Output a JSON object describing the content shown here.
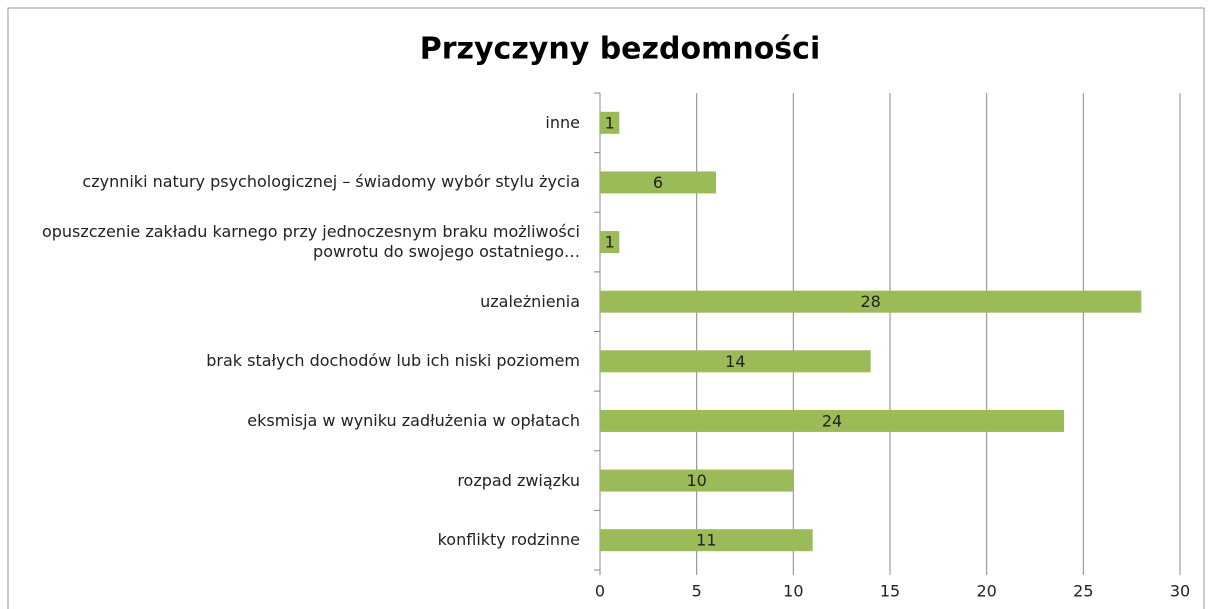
{
  "chart_data": {
    "type": "bar",
    "orientation": "horizontal",
    "title": "Przyczyny bezdomności",
    "categories": [
      "inne",
      "czynniki natury psychologicznej – świadomy wybór stylu życia",
      "opuszczenie zakładu karnego przy jednoczesnym braku możliwości powrotu do swojego ostatniego…",
      "uzależnienia",
      "brak stałych dochodów lub ich niski poziomem",
      "eksmisja w wyniku zadłużenia w opłatach",
      "rozpad związku",
      "konflikty rodzinne"
    ],
    "values": [
      1,
      6,
      1,
      28,
      14,
      24,
      10,
      11
    ],
    "color": "#9bbb59",
    "xlim": [
      0,
      30
    ],
    "xticks": [
      0,
      5,
      10,
      15,
      20,
      25,
      30
    ],
    "grid": true
  }
}
